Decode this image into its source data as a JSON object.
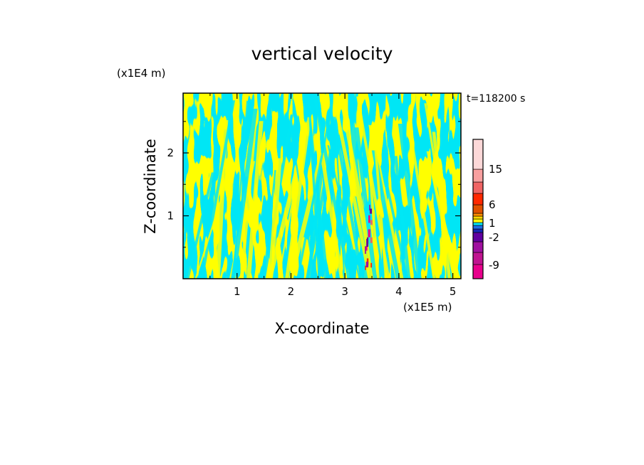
{
  "chart_data": {
    "type": "heatmap",
    "title": "vertical velocity",
    "xlabel": "X-coordinate",
    "ylabel": "Z-coordinate",
    "x_unit": "(x1E5 m)",
    "y_unit": "(x1E4 m)",
    "time_label": "t=118200 s",
    "xlim": [
      0.0,
      5.15
    ],
    "ylim": [
      0.0,
      2.95
    ],
    "x_ticks": [
      "1",
      "2",
      "3",
      "4",
      "5"
    ],
    "y_ticks": [
      "1",
      "2"
    ],
    "x_tick_values": [
      1,
      2,
      3,
      4,
      5
    ],
    "y_tick_values": [
      1,
      2
    ],
    "colorbar": {
      "tick_labels": [
        "15",
        "6",
        "1",
        "-2",
        "-9"
      ],
      "tick_values": [
        15,
        6,
        1,
        -2,
        -9
      ],
      "colors": [
        "#e8008c",
        "#c01490",
        "#a010a0",
        "#6000a0",
        "#1428b4",
        "#1e6ee6",
        "#00e6f5",
        "#ffff00",
        "#ffd700",
        "#ff8c00",
        "#e05000",
        "#ff2800",
        "#f06464",
        "#f8a0a0",
        "#fcd8d8"
      ]
    },
    "field_description_colors": {
      "positive": "#ffff00",
      "negative": "#00e6f5"
    }
  }
}
